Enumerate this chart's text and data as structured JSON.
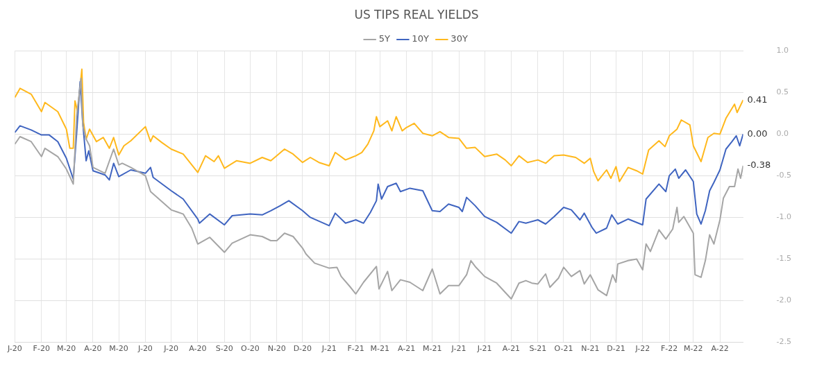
{
  "chart_data": {
    "type": "line",
    "title": "US TIPS REAL YIELDS",
    "legend": "top",
    "grid": true,
    "marker": "none",
    "line_style": "solid",
    "xlim": [
      "2020-01-01",
      "2022-04-28"
    ],
    "xticks": [
      {
        "value": "2020-01-01",
        "label": "J-20"
      },
      {
        "value": "2020-02-01",
        "label": "F-20"
      },
      {
        "value": "2020-03-01",
        "label": "M-20"
      },
      {
        "value": "2020-04-01",
        "label": "A-20"
      },
      {
        "value": "2020-05-01",
        "label": "M-20"
      },
      {
        "value": "2020-06-01",
        "label": "J-20"
      },
      {
        "value": "2020-07-01",
        "label": "J-20"
      },
      {
        "value": "2020-08-01",
        "label": "A-20"
      },
      {
        "value": "2020-09-01",
        "label": "S-20"
      },
      {
        "value": "2020-10-01",
        "label": "O-20"
      },
      {
        "value": "2020-11-01",
        "label": "N-20"
      },
      {
        "value": "2020-12-01",
        "label": "D-20"
      },
      {
        "value": "2021-01-01",
        "label": "J-21"
      },
      {
        "value": "2021-02-01",
        "label": "F-21"
      },
      {
        "value": "2021-03-01",
        "label": "M-21"
      },
      {
        "value": "2021-04-01",
        "label": "A-21"
      },
      {
        "value": "2021-05-01",
        "label": "M-21"
      },
      {
        "value": "2021-06-01",
        "label": "J-21"
      },
      {
        "value": "2021-07-01",
        "label": "J-21"
      },
      {
        "value": "2021-08-01",
        "label": "A-21"
      },
      {
        "value": "2021-09-01",
        "label": "S-21"
      },
      {
        "value": "2021-10-01",
        "label": "O-21"
      },
      {
        "value": "2021-11-01",
        "label": "N-21"
      },
      {
        "value": "2021-12-01",
        "label": "D-21"
      },
      {
        "value": "2022-01-01",
        "label": "J-22"
      },
      {
        "value": "2022-02-01",
        "label": "F-22"
      },
      {
        "value": "2022-03-01",
        "label": "M-22"
      },
      {
        "value": "2022-04-01",
        "label": "A-22"
      }
    ],
    "ylim": [
      -2.5,
      1.0
    ],
    "yticks": [
      {
        "value": -2.5,
        "label": "-2.5"
      },
      {
        "value": -2.0,
        "label": "-2.0"
      },
      {
        "value": -1.5,
        "label": "-1.5"
      },
      {
        "value": -1.0,
        "label": "-1.0"
      },
      {
        "value": -0.5,
        "label": "-0.5"
      },
      {
        "value": 0,
        "label": "0.0"
      },
      {
        "value": 0.5,
        "label": "0.5"
      },
      {
        "value": 1.0,
        "label": "1.0"
      }
    ],
    "series": [
      {
        "name": "5Y",
        "color": "#a5a5a5",
        "x": [
          "2020-01-01",
          "2020-01-07",
          "2020-01-20",
          "2020-02-01",
          "2020-02-05",
          "2020-02-20",
          "2020-03-01",
          "2020-03-09",
          "2020-03-13",
          "2020-03-18",
          "2020-03-20",
          "2020-03-24",
          "2020-03-28",
          "2020-04-01",
          "2020-04-15",
          "2020-04-25",
          "2020-05-01",
          "2020-05-05",
          "2020-05-15",
          "2020-06-01",
          "2020-06-07",
          "2020-07-01",
          "2020-07-15",
          "2020-07-25",
          "2020-08-01",
          "2020-08-15",
          "2020-09-01",
          "2020-09-10",
          "2020-10-01",
          "2020-10-15",
          "2020-10-25",
          "2020-11-01",
          "2020-11-10",
          "2020-11-20",
          "2020-12-01",
          "2020-12-05",
          "2020-12-15",
          "2021-01-01",
          "2021-01-10",
          "2021-01-15",
          "2021-01-25",
          "2021-02-01",
          "2021-02-10",
          "2021-02-25",
          "2021-02-28",
          "2021-03-10",
          "2021-03-15",
          "2021-03-25",
          "2021-04-05",
          "2021-04-20",
          "2021-05-01",
          "2021-05-10",
          "2021-05-20",
          "2021-06-01",
          "2021-06-10",
          "2021-06-15",
          "2021-06-20",
          "2021-07-01",
          "2021-07-15",
          "2021-08-01",
          "2021-08-10",
          "2021-08-18",
          "2021-08-25",
          "2021-09-01",
          "2021-09-10",
          "2021-09-15",
          "2021-09-25",
          "2021-10-01",
          "2021-10-10",
          "2021-10-20",
          "2021-10-25",
          "2021-11-01",
          "2021-11-10",
          "2021-11-20",
          "2021-11-27",
          "2021-12-01",
          "2021-12-03",
          "2021-12-15",
          "2021-12-25",
          "2022-01-01",
          "2022-01-05",
          "2022-01-10",
          "2022-01-20",
          "2022-01-28",
          "2022-02-05",
          "2022-02-10",
          "2022-02-12",
          "2022-02-18",
          "2022-03-01",
          "2022-03-03",
          "2022-03-10",
          "2022-03-15",
          "2022-03-20",
          "2022-03-25",
          "2022-04-01",
          "2022-04-05",
          "2022-04-12",
          "2022-04-18",
          "2022-04-22",
          "2022-04-25",
          "2022-04-28"
        ],
        "values": [
          -0.12,
          -0.03,
          -0.09,
          -0.27,
          -0.17,
          -0.27,
          -0.42,
          -0.6,
          0.22,
          0.67,
          0.11,
          -0.06,
          -0.14,
          -0.4,
          -0.47,
          -0.18,
          -0.37,
          -0.35,
          -0.4,
          -0.5,
          -0.69,
          -0.91,
          -0.96,
          -1.13,
          -1.32,
          -1.24,
          -1.42,
          -1.31,
          -1.21,
          -1.23,
          -1.28,
          -1.28,
          -1.19,
          -1.23,
          -1.37,
          -1.44,
          -1.55,
          -1.61,
          -1.6,
          -1.71,
          -1.83,
          -1.92,
          -1.78,
          -1.59,
          -1.86,
          -1.65,
          -1.88,
          -1.75,
          -1.78,
          -1.88,
          -1.62,
          -1.92,
          -1.82,
          -1.82,
          -1.69,
          -1.52,
          -1.59,
          -1.71,
          -1.79,
          -1.98,
          -1.79,
          -1.76,
          -1.79,
          -1.8,
          -1.68,
          -1.84,
          -1.73,
          -1.6,
          -1.71,
          -1.64,
          -1.8,
          -1.69,
          -1.87,
          -1.94,
          -1.69,
          -1.78,
          -1.56,
          -1.52,
          -1.5,
          -1.63,
          -1.32,
          -1.41,
          -1.15,
          -1.26,
          -1.14,
          -0.88,
          -1.06,
          -0.99,
          -1.19,
          -1.69,
          -1.72,
          -1.52,
          -1.21,
          -1.32,
          -1.03,
          -0.77,
          -0.63,
          -0.63,
          -0.42,
          -0.53,
          -0.38
        ],
        "value_labels": [
          null,
          null,
          null,
          null,
          null,
          null,
          null,
          null,
          null,
          null,
          null,
          null,
          null,
          null,
          null,
          null,
          null,
          null,
          null,
          null,
          null,
          null,
          null,
          null,
          null,
          null,
          null,
          null,
          null,
          null,
          null,
          null,
          null,
          null,
          null,
          null,
          null,
          null,
          null,
          null,
          null,
          null,
          null,
          null,
          null,
          null,
          null,
          null,
          null,
          null,
          null,
          null,
          null,
          null,
          null,
          null,
          null,
          null,
          null,
          null,
          null,
          null,
          null,
          null,
          null,
          null,
          null,
          null,
          null,
          null,
          null,
          null,
          null,
          null,
          null,
          null,
          null,
          null,
          null,
          null,
          null,
          null,
          null,
          null,
          null,
          null,
          null,
          null,
          null,
          null,
          null,
          null,
          null,
          null,
          null,
          null,
          null,
          null,
          null,
          null,
          "-0.38"
        ]
      },
      {
        "name": "10Y",
        "color": "#3f64c0",
        "x": [
          "2020-01-01",
          "2020-01-07",
          "2020-01-20",
          "2020-02-01",
          "2020-02-10",
          "2020-02-20",
          "2020-03-01",
          "2020-03-09",
          "2020-03-13",
          "2020-03-17",
          "2020-03-20",
          "2020-03-24",
          "2020-03-27",
          "2020-04-01",
          "2020-04-15",
          "2020-04-20",
          "2020-04-25",
          "2020-05-01",
          "2020-05-15",
          "2020-06-01",
          "2020-06-07",
          "2020-06-10",
          "2020-07-01",
          "2020-07-15",
          "2020-08-01",
          "2020-08-03",
          "2020-08-15",
          "2020-09-01",
          "2020-09-10",
          "2020-10-01",
          "2020-10-15",
          "2020-10-25",
          "2020-11-05",
          "2020-11-15",
          "2020-12-01",
          "2020-12-10",
          "2021-01-01",
          "2021-01-08",
          "2021-01-20",
          "2021-02-01",
          "2021-02-10",
          "2021-02-18",
          "2021-02-25",
          "2021-02-27",
          "2021-03-03",
          "2021-03-10",
          "2021-03-20",
          "2021-03-25",
          "2021-04-05",
          "2021-04-20",
          "2021-05-01",
          "2021-05-10",
          "2021-05-20",
          "2021-06-01",
          "2021-06-05",
          "2021-06-10",
          "2021-06-20",
          "2021-07-01",
          "2021-07-15",
          "2021-08-01",
          "2021-08-10",
          "2021-08-18",
          "2021-09-01",
          "2021-09-10",
          "2021-09-20",
          "2021-10-01",
          "2021-10-10",
          "2021-10-20",
          "2021-10-25",
          "2021-11-03",
          "2021-11-08",
          "2021-11-20",
          "2021-11-26",
          "2021-12-03",
          "2021-12-15",
          "2022-01-01",
          "2022-01-05",
          "2022-01-20",
          "2022-01-28",
          "2022-02-01",
          "2022-02-08",
          "2022-02-12",
          "2022-02-20",
          "2022-03-01",
          "2022-03-05",
          "2022-03-10",
          "2022-03-15",
          "2022-03-20",
          "2022-03-25",
          "2022-04-01",
          "2022-04-08",
          "2022-04-15",
          "2022-04-20",
          "2022-04-24",
          "2022-04-28"
        ],
        "values": [
          0.02,
          0.1,
          0.05,
          -0.01,
          -0.01,
          -0.09,
          -0.29,
          -0.54,
          0.02,
          0.63,
          0.14,
          -0.32,
          -0.2,
          -0.44,
          -0.49,
          -0.55,
          -0.35,
          -0.51,
          -0.43,
          -0.47,
          -0.4,
          -0.52,
          -0.68,
          -0.78,
          -1.02,
          -1.07,
          -0.96,
          -1.09,
          -0.98,
          -0.96,
          -0.97,
          -0.92,
          -0.86,
          -0.8,
          -0.92,
          -1.0,
          -1.1,
          -0.95,
          -1.07,
          -1.03,
          -1.07,
          -0.94,
          -0.8,
          -0.6,
          -0.78,
          -0.63,
          -0.59,
          -0.69,
          -0.65,
          -0.68,
          -0.92,
          -0.93,
          -0.84,
          -0.88,
          -0.93,
          -0.76,
          -0.86,
          -0.99,
          -1.06,
          -1.19,
          -1.05,
          -1.07,
          -1.03,
          -1.08,
          -0.99,
          -0.88,
          -0.91,
          -1.03,
          -0.95,
          -1.12,
          -1.19,
          -1.13,
          -0.97,
          -1.08,
          -1.02,
          -1.09,
          -0.78,
          -0.6,
          -0.69,
          -0.5,
          -0.42,
          -0.53,
          -0.43,
          -0.57,
          -0.96,
          -1.08,
          -0.92,
          -0.68,
          -0.58,
          -0.43,
          -0.18,
          -0.09,
          -0.02,
          -0.14,
          0.0
        ],
        "value_labels": [
          null,
          null,
          null,
          null,
          null,
          null,
          null,
          null,
          null,
          null,
          null,
          null,
          null,
          null,
          null,
          null,
          null,
          null,
          null,
          null,
          null,
          null,
          null,
          null,
          null,
          null,
          null,
          null,
          null,
          null,
          null,
          null,
          null,
          null,
          null,
          null,
          null,
          null,
          null,
          null,
          null,
          null,
          null,
          null,
          null,
          null,
          null,
          null,
          null,
          null,
          null,
          null,
          null,
          null,
          null,
          null,
          null,
          null,
          null,
          null,
          null,
          null,
          null,
          null,
          null,
          null,
          null,
          null,
          null,
          null,
          null,
          null,
          null,
          null,
          null,
          null,
          null,
          null,
          null,
          null,
          null,
          null,
          null,
          null,
          null,
          null,
          null,
          null,
          null,
          null,
          null,
          null,
          null,
          null,
          "0.00"
        ]
      },
      {
        "name": "30Y",
        "color": "#ffb81c",
        "x": [
          "2020-01-01",
          "2020-01-07",
          "2020-01-20",
          "2020-02-01",
          "2020-02-05",
          "2020-02-20",
          "2020-03-01",
          "2020-03-05",
          "2020-03-09",
          "2020-03-11",
          "2020-03-14",
          "2020-03-19",
          "2020-03-21",
          "2020-03-24",
          "2020-03-28",
          "2020-04-05",
          "2020-04-13",
          "2020-04-20",
          "2020-04-25",
          "2020-05-01",
          "2020-05-07",
          "2020-05-15",
          "2020-06-01",
          "2020-06-07",
          "2020-06-10",
          "2020-06-20",
          "2020-07-01",
          "2020-07-15",
          "2020-08-01",
          "2020-08-10",
          "2020-08-20",
          "2020-08-25",
          "2020-09-01",
          "2020-09-15",
          "2020-10-01",
          "2020-10-15",
          "2020-10-25",
          "2020-11-01",
          "2020-11-10",
          "2020-11-20",
          "2020-12-01",
          "2020-12-10",
          "2020-12-20",
          "2021-01-01",
          "2021-01-08",
          "2021-01-20",
          "2021-02-01",
          "2021-02-08",
          "2021-02-15",
          "2021-02-22",
          "2021-02-25",
          "2021-03-01",
          "2021-03-10",
          "2021-03-15",
          "2021-03-20",
          "2021-03-27",
          "2021-04-01",
          "2021-04-10",
          "2021-04-20",
          "2021-05-01",
          "2021-05-10",
          "2021-05-20",
          "2021-06-01",
          "2021-06-10",
          "2021-06-20",
          "2021-07-01",
          "2021-07-15",
          "2021-07-25",
          "2021-08-01",
          "2021-08-10",
          "2021-08-20",
          "2021-09-01",
          "2021-09-10",
          "2021-09-20",
          "2021-10-01",
          "2021-10-15",
          "2021-10-25",
          "2021-11-01",
          "2021-11-05",
          "2021-11-10",
          "2021-11-20",
          "2021-11-25",
          "2021-12-01",
          "2021-12-05",
          "2021-12-15",
          "2021-12-25",
          "2022-01-01",
          "2022-01-08",
          "2022-01-20",
          "2022-01-27",
          "2022-02-01",
          "2022-02-10",
          "2022-02-15",
          "2022-02-25",
          "2022-03-01",
          "2022-03-10",
          "2022-03-18",
          "2022-03-25",
          "2022-04-01",
          "2022-04-08",
          "2022-04-18",
          "2022-04-21",
          "2022-04-28"
        ],
        "values": [
          0.44,
          0.55,
          0.48,
          0.27,
          0.38,
          0.27,
          0.06,
          -0.17,
          -0.17,
          0.4,
          0.27,
          0.78,
          0.14,
          -0.06,
          0.06,
          -0.09,
          -0.04,
          -0.17,
          -0.04,
          -0.25,
          -0.14,
          -0.08,
          0.09,
          -0.09,
          -0.02,
          -0.1,
          -0.18,
          -0.24,
          -0.46,
          -0.26,
          -0.33,
          -0.26,
          -0.41,
          -0.32,
          -0.35,
          -0.28,
          -0.32,
          -0.26,
          -0.18,
          -0.24,
          -0.34,
          -0.28,
          -0.34,
          -0.38,
          -0.22,
          -0.31,
          -0.26,
          -0.22,
          -0.12,
          0.04,
          0.21,
          0.09,
          0.16,
          0.04,
          0.21,
          0.04,
          0.08,
          0.13,
          0.01,
          -0.02,
          0.03,
          -0.04,
          -0.05,
          -0.17,
          -0.16,
          -0.27,
          -0.24,
          -0.31,
          -0.38,
          -0.26,
          -0.34,
          -0.31,
          -0.35,
          -0.26,
          -0.25,
          -0.28,
          -0.35,
          -0.29,
          -0.45,
          -0.56,
          -0.43,
          -0.53,
          -0.39,
          -0.57,
          -0.4,
          -0.44,
          -0.48,
          -0.19,
          -0.08,
          -0.15,
          -0.02,
          0.06,
          0.17,
          0.11,
          -0.14,
          -0.33,
          -0.04,
          0.01,
          0.0,
          0.19,
          0.36,
          0.26,
          0.41
        ],
        "value_labels": [
          null,
          null,
          null,
          null,
          null,
          null,
          null,
          null,
          null,
          null,
          null,
          null,
          null,
          null,
          null,
          null,
          null,
          null,
          null,
          null,
          null,
          null,
          null,
          null,
          null,
          null,
          null,
          null,
          null,
          null,
          null,
          null,
          null,
          null,
          null,
          null,
          null,
          null,
          null,
          null,
          null,
          null,
          null,
          null,
          null,
          null,
          null,
          null,
          null,
          null,
          null,
          null,
          null,
          null,
          null,
          null,
          null,
          null,
          null,
          null,
          null,
          null,
          null,
          null,
          null,
          null,
          null,
          null,
          null,
          null,
          null,
          null,
          null,
          null,
          null,
          null,
          null,
          null,
          null,
          null,
          null,
          null,
          null,
          null,
          null,
          null,
          null,
          null,
          null,
          null,
          null,
          null,
          null,
          null,
          null,
          null,
          null,
          null,
          null,
          null,
          null,
          null,
          "0.41"
        ]
      }
    ]
  }
}
